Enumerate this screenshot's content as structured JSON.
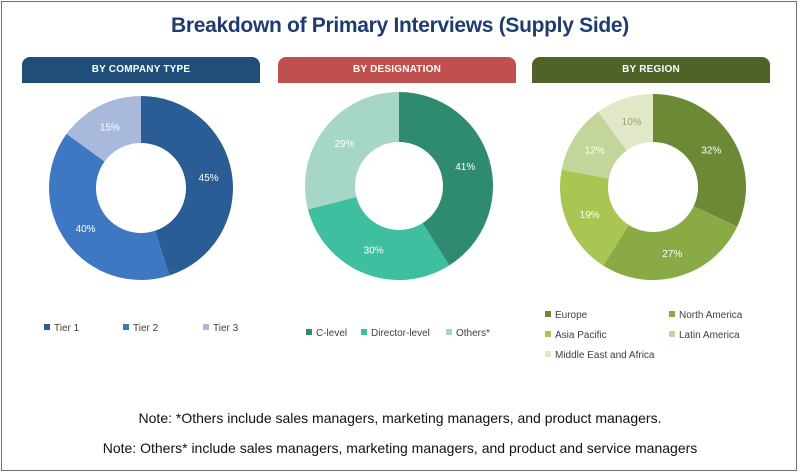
{
  "title": "Breakdown of Primary Interviews (Supply Side)",
  "chart_data": [
    {
      "type": "pie",
      "subtype": "donut",
      "title": "BY COMPANY TYPE",
      "header_color": "#1f4e79",
      "labels": [
        "Tier 1",
        "Tier 2",
        "Tier 3"
      ],
      "values": [
        45,
        40,
        15
      ],
      "value_labels": [
        "45%",
        "40%",
        "15%"
      ],
      "colors": [
        "#2a5d96",
        "#3e78c2",
        "#a8b9dc"
      ],
      "label_colors": [
        "#ffffff",
        "#ffffff",
        "#ffffff"
      ],
      "start_angle_deg": 0,
      "legend_position": "bottom"
    },
    {
      "type": "pie",
      "subtype": "donut",
      "title": "BY DESIGNATION",
      "header_color": "#c0504d",
      "labels": [
        "C-level",
        "Director-level",
        "Others*"
      ],
      "values": [
        41,
        30,
        29
      ],
      "value_labels": [
        "41%",
        "30%",
        "29%"
      ],
      "colors": [
        "#2e8b6f",
        "#3dbfa0",
        "#a6d6c8"
      ],
      "label_colors": [
        "#ffffff",
        "#ffffff",
        "#ffffff"
      ],
      "start_angle_deg": 0,
      "legend_position": "bottom"
    },
    {
      "type": "pie",
      "subtype": "donut",
      "title": "BY REGION",
      "header_color": "#4f6228",
      "labels": [
        "Europe",
        "North America",
        "Asia Pacific",
        "Latin America",
        "Middle East and Africa"
      ],
      "values": [
        32,
        27,
        19,
        12,
        10
      ],
      "value_labels": [
        "32%",
        "27%",
        "19%",
        "12%",
        "10%"
      ],
      "colors": [
        "#6c8a35",
        "#8aaa46",
        "#a9c653",
        "#c4d59b",
        "#e1e8c8"
      ],
      "label_colors": [
        "#ffffff",
        "#ffffff",
        "#ffffff",
        "#ffffff",
        "#9aa07a"
      ],
      "start_angle_deg": 0,
      "legend_position": "bottom"
    }
  ],
  "notes": [
    "Note: *Others include sales managers, marketing managers, and product managers.",
    "Note: Others* include sales managers, marketing managers, and product and service managers"
  ]
}
